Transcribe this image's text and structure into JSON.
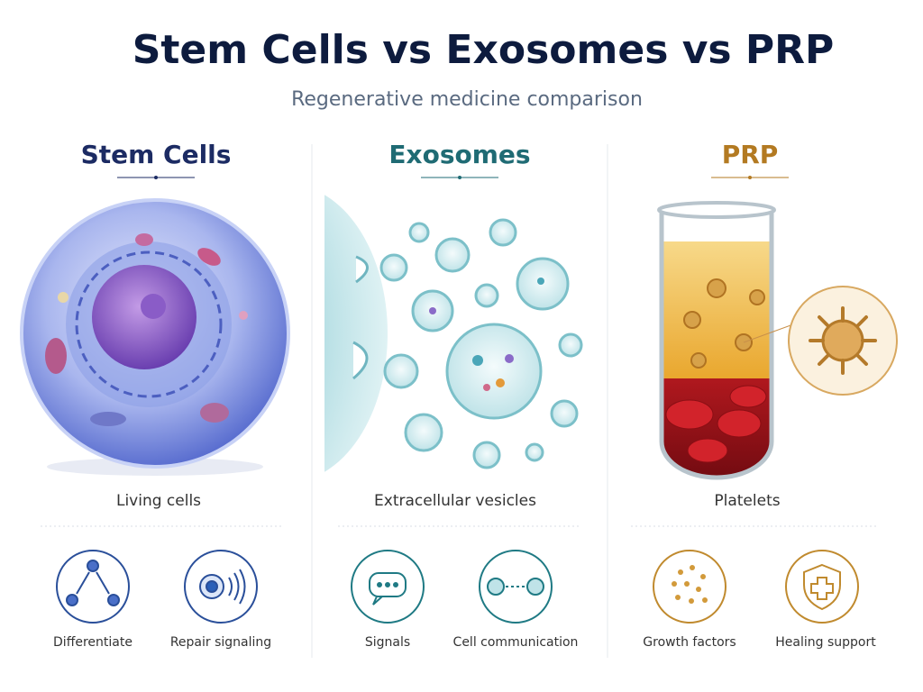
{
  "header": {
    "title": "Stem Cells vs Exosomes vs PRP",
    "subtitle": "Regenerative medicine comparison"
  },
  "columns": [
    {
      "heading": "Stem Cells",
      "caption": "Living cells",
      "features": [
        {
          "label": "Differentiate"
        },
        {
          "label": "Repair signaling"
        }
      ]
    },
    {
      "heading": "Exosomes",
      "caption": "Extracellular vesicles",
      "features": [
        {
          "label": "Signals"
        },
        {
          "label": "Cell communication"
        }
      ]
    },
    {
      "heading": "PRP",
      "caption": "Platelets",
      "features": [
        {
          "label": "Growth factors"
        },
        {
          "label": "Healing support"
        }
      ]
    }
  ]
}
